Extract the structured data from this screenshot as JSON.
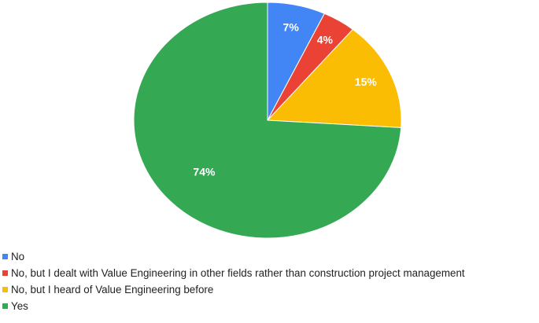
{
  "chart_data": {
    "type": "pie",
    "title": "",
    "slices": [
      {
        "label": "No",
        "value": 7,
        "display": "7%",
        "color": "#4285f4"
      },
      {
        "label": "No, but I dealt with Value Engineering in other fields rather than construction project management",
        "value": 4,
        "display": "4%",
        "color": "#ea4335"
      },
      {
        "label": "No, but I heard of Value Engineering before",
        "value": 15,
        "display": "15%",
        "color": "#fbbc04"
      },
      {
        "label": "Yes",
        "value": 74,
        "display": "74%",
        "color": "#34a853"
      }
    ],
    "start_angle": "12 o'clock",
    "direction": "clockwise",
    "legend_position": "bottom-left"
  }
}
